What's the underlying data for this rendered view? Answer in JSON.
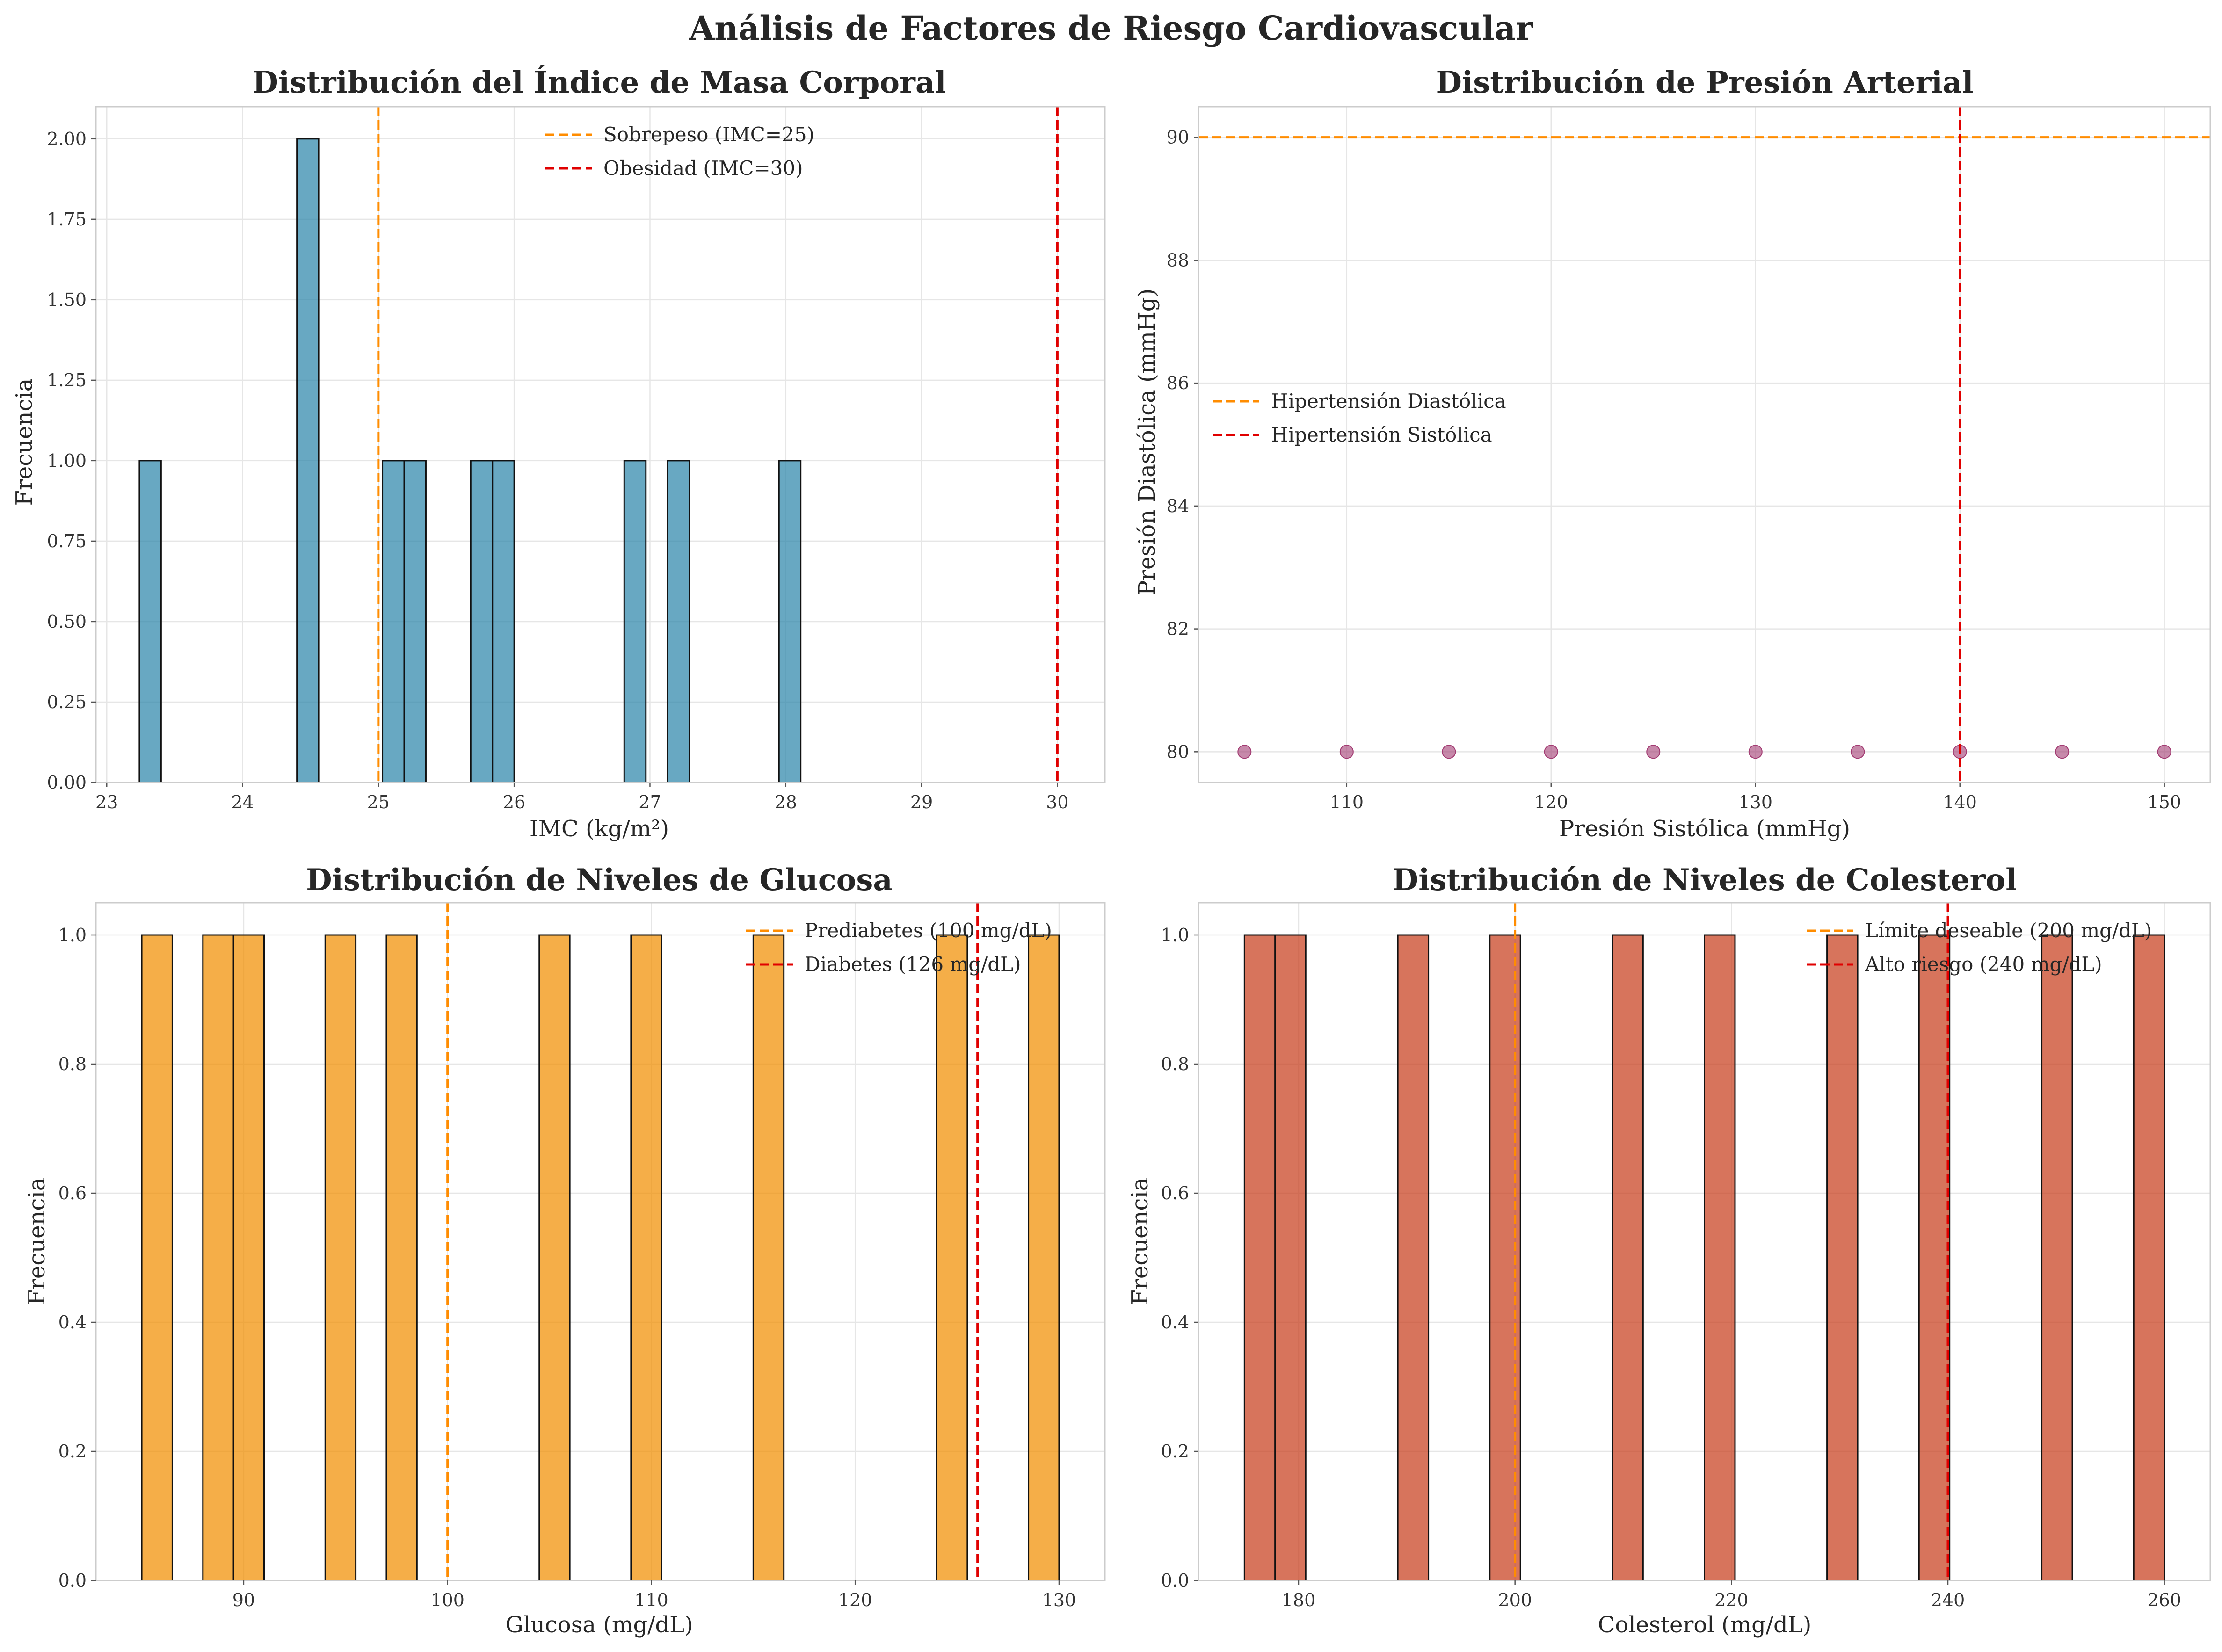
{
  "suptitle": "Análisis de Factores de Riesgo Cardiovascular",
  "chart_data": [
    {
      "type": "bar",
      "subtype": "histogram",
      "title": "Distribución del Índice de Masa Corporal",
      "xlabel": "IMC (kg/m²)",
      "ylabel": "Frecuencia",
      "xlim": [
        22.92,
        30.35
      ],
      "ylim": [
        0,
        2.1
      ],
      "bar_color": "#2e86ab",
      "bin_width": 0.16,
      "bins": [
        {
          "x": 23.24,
          "value": 1
        },
        {
          "x": 24.4,
          "value": 2
        },
        {
          "x": 25.03,
          "value": 1
        },
        {
          "x": 25.19,
          "value": 1
        },
        {
          "x": 25.68,
          "value": 1
        },
        {
          "x": 25.84,
          "value": 1
        },
        {
          "x": 26.81,
          "value": 1
        },
        {
          "x": 27.13,
          "value": 1
        },
        {
          "x": 27.95,
          "value": 1
        }
      ],
      "xticks": [
        "23",
        "24",
        "25",
        "26",
        "27",
        "28",
        "29",
        "30"
      ],
      "xtick_values": [
        23,
        24,
        25,
        26,
        27,
        28,
        29,
        30
      ],
      "yticks": [
        "0.00",
        "0.25",
        "0.50",
        "0.75",
        "1.00",
        "1.25",
        "1.50",
        "1.75",
        "2.00"
      ],
      "ytick_values": [
        0,
        0.25,
        0.5,
        0.75,
        1.0,
        1.25,
        1.5,
        1.75,
        2.0
      ],
      "reference_lines": [
        {
          "orientation": "vertical",
          "value": 25,
          "color": "#ff8c00",
          "label": "Sobrepeso (IMC=25)"
        },
        {
          "orientation": "vertical",
          "value": 30,
          "color": "#e00000",
          "label": "Obesidad (IMC=30)"
        }
      ],
      "legend": "top-center",
      "grid": true
    },
    {
      "type": "scatter",
      "title": "Distribución de Presión Arterial",
      "xlabel": "Presión Sistólica (mmHg)",
      "ylabel": "Presión Diastólica (mmHg)",
      "xlim": [
        102.75,
        152.25
      ],
      "ylim": [
        79.5,
        90.5
      ],
      "point_color": "#a23b72",
      "points": [
        {
          "x": 105,
          "y": 80
        },
        {
          "x": 110,
          "y": 80
        },
        {
          "x": 115,
          "y": 80
        },
        {
          "x": 120,
          "y": 80
        },
        {
          "x": 125,
          "y": 80
        },
        {
          "x": 130,
          "y": 80
        },
        {
          "x": 135,
          "y": 80
        },
        {
          "x": 140,
          "y": 80
        },
        {
          "x": 145,
          "y": 80
        },
        {
          "x": 150,
          "y": 80
        }
      ],
      "xticks": [
        "110",
        "120",
        "130",
        "140",
        "150"
      ],
      "xtick_values": [
        110,
        120,
        130,
        140,
        150
      ],
      "yticks": [
        "80",
        "82",
        "84",
        "86",
        "88",
        "90"
      ],
      "ytick_values": [
        80,
        82,
        84,
        86,
        88,
        90
      ],
      "reference_lines": [
        {
          "orientation": "horizontal",
          "value": 90,
          "color": "#ff8c00",
          "label": "Hipertensión Diastólica"
        },
        {
          "orientation": "vertical",
          "value": 140,
          "color": "#e00000",
          "label": "Hipertensión Sistólica"
        }
      ],
      "legend": "center-left",
      "grid": true
    },
    {
      "type": "bar",
      "subtype": "histogram",
      "title": "Distribución de Niveles de Glucosa",
      "xlabel": "Glucosa (mg/dL)",
      "ylabel": "Frecuencia",
      "xlim": [
        82.75,
        132.25
      ],
      "ylim": [
        0,
        1.05
      ],
      "bar_color": "#f18f01",
      "bin_width": 1.5,
      "bins": [
        {
          "x": 85.0,
          "value": 1
        },
        {
          "x": 88.0,
          "value": 1
        },
        {
          "x": 89.5,
          "value": 1
        },
        {
          "x": 94.0,
          "value": 1
        },
        {
          "x": 97.0,
          "value": 1
        },
        {
          "x": 104.5,
          "value": 1
        },
        {
          "x": 109.0,
          "value": 1
        },
        {
          "x": 115.0,
          "value": 1
        },
        {
          "x": 124.0,
          "value": 1
        },
        {
          "x": 128.5,
          "value": 1
        }
      ],
      "xticks": [
        "90",
        "100",
        "110",
        "120",
        "130"
      ],
      "xtick_values": [
        90,
        100,
        110,
        120,
        130
      ],
      "yticks": [
        "0.0",
        "0.2",
        "0.4",
        "0.6",
        "0.8",
        "1.0"
      ],
      "ytick_values": [
        0,
        0.2,
        0.4,
        0.6,
        0.8,
        1.0
      ],
      "reference_lines": [
        {
          "orientation": "vertical",
          "value": 100,
          "color": "#ff8c00",
          "label": "Prediabetes (100 mg/dL)"
        },
        {
          "orientation": "vertical",
          "value": 126,
          "color": "#e00000",
          "label": "Diabetes (126 mg/dL)"
        }
      ],
      "legend": "top-right",
      "grid": true
    },
    {
      "type": "bar",
      "subtype": "histogram",
      "title": "Distribución de Niveles de Colesterol",
      "xlabel": "Colesterol (mg/dL)",
      "ylabel": "Frecuencia",
      "xlim": [
        170.75,
        264.25
      ],
      "ylim": [
        0,
        1.05
      ],
      "bar_color": "#c73e1d",
      "bin_width": 2.83,
      "bins": [
        {
          "x": 175.0,
          "value": 1
        },
        {
          "x": 177.83,
          "value": 1
        },
        {
          "x": 189.17,
          "value": 1
        },
        {
          "x": 197.67,
          "value": 1
        },
        {
          "x": 209.0,
          "value": 1
        },
        {
          "x": 217.5,
          "value": 1
        },
        {
          "x": 228.83,
          "value": 1
        },
        {
          "x": 237.33,
          "value": 1
        },
        {
          "x": 248.67,
          "value": 1
        },
        {
          "x": 257.17,
          "value": 1
        }
      ],
      "xticks": [
        "180",
        "200",
        "220",
        "240",
        "260"
      ],
      "xtick_values": [
        180,
        200,
        220,
        240,
        260
      ],
      "yticks": [
        "0.0",
        "0.2",
        "0.4",
        "0.6",
        "0.8",
        "1.0"
      ],
      "ytick_values": [
        0,
        0.2,
        0.4,
        0.6,
        0.8,
        1.0
      ],
      "reference_lines": [
        {
          "orientation": "vertical",
          "value": 200,
          "color": "#ff8c00",
          "label": "Límite deseable (200 mg/dL)"
        },
        {
          "orientation": "vertical",
          "value": 240,
          "color": "#e00000",
          "label": "Alto riesgo (240 mg/dL)"
        }
      ],
      "legend": "top-right",
      "grid": true
    }
  ]
}
